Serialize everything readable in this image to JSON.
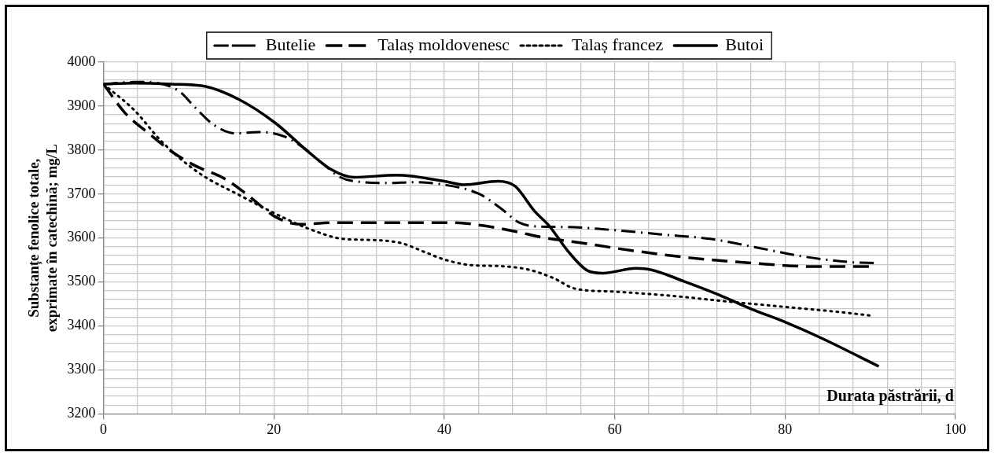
{
  "chart_data": {
    "type": "line",
    "xlabel": "Durata păstrării, d",
    "ylabel": "Substanțe fenolice totale,\nexprimate în catechină; mg/L",
    "xlim": [
      0,
      100
    ],
    "ylim": [
      3200,
      4000
    ],
    "xticks": [
      0,
      {
        "value": 4,
        "label": null
      },
      {
        "value": 8,
        "label": null
      },
      {
        "value": 12,
        "label": null
      },
      {
        "value": 16,
        "label": null
      },
      20,
      {
        "value": 24,
        "label": null
      },
      {
        "value": 28,
        "label": null
      },
      {
        "value": 32,
        "label": null
      },
      {
        "value": 36,
        "label": null
      },
      40,
      {
        "value": 44,
        "label": null
      },
      {
        "value": 48,
        "label": null
      },
      {
        "value": 52,
        "label": null
      },
      {
        "value": 56,
        "label": null
      },
      60,
      {
        "value": 64,
        "label": null
      },
      {
        "value": 68,
        "label": null
      },
      {
        "value": 72,
        "label": null
      },
      {
        "value": 76,
        "label": null
      },
      80,
      {
        "value": 84,
        "label": null
      },
      {
        "value": 88,
        "label": null
      },
      {
        "value": 92,
        "label": null
      },
      {
        "value": 96,
        "label": null
      },
      100
    ],
    "yticks": [
      3200,
      {
        "value": 3220,
        "label": null
      },
      {
        "value": 3240,
        "label": null
      },
      {
        "value": 3260,
        "label": null
      },
      {
        "value": 3280,
        "label": null
      },
      3300,
      {
        "value": 3320,
        "label": null
      },
      {
        "value": 3340,
        "label": null
      },
      {
        "value": 3360,
        "label": null
      },
      {
        "value": 3380,
        "label": null
      },
      3400,
      {
        "value": 3420,
        "label": null
      },
      {
        "value": 3440,
        "label": null
      },
      {
        "value": 3460,
        "label": null
      },
      {
        "value": 3480,
        "label": null
      },
      3500,
      {
        "value": 3520,
        "label": null
      },
      {
        "value": 3540,
        "label": null
      },
      {
        "value": 3560,
        "label": null
      },
      {
        "value": 3580,
        "label": null
      },
      3600,
      {
        "value": 3620,
        "label": null
      },
      {
        "value": 3640,
        "label": null
      },
      {
        "value": 3660,
        "label": null
      },
      {
        "value": 3680,
        "label": null
      },
      3700,
      {
        "value": 3720,
        "label": null
      },
      {
        "value": 3740,
        "label": null
      },
      {
        "value": 3760,
        "label": null
      },
      {
        "value": 3780,
        "label": null
      },
      3800,
      {
        "value": 3820,
        "label": null
      },
      {
        "value": 3840,
        "label": null
      },
      {
        "value": 3860,
        "label": null
      },
      {
        "value": 3880,
        "label": null
      },
      3900,
      {
        "value": 3920,
        "label": null
      },
      {
        "value": 3940,
        "label": null
      },
      {
        "value": 3960,
        "label": null
      },
      {
        "value": 3980,
        "label": null
      },
      4000
    ],
    "grid": true,
    "legend": "top",
    "marker": "none",
    "series": [
      {
        "name": "Butelie",
        "color": "#000000",
        "line_style": "dashdot",
        "x": [
          0,
          4,
          8.8,
          10.7,
          12.9,
          15.5,
          18.2,
          21.2,
          23.5,
          25.8,
          27.8,
          30.4,
          33.4,
          36.4,
          40,
          44,
          46.6,
          48.8,
          51.2,
          54.3,
          59.9,
          65.5,
          71.2,
          76.5,
          82.1,
          87.7,
          90.5
        ],
        "values": [
          3950,
          3955,
          3935,
          3898,
          3858,
          3838,
          3841,
          3831,
          3805,
          3768,
          3738,
          3727,
          3725,
          3727,
          3721,
          3701,
          3668,
          3635,
          3626,
          3625,
          3618,
          3608,
          3598,
          3579,
          3558,
          3545,
          3543
        ]
      },
      {
        "name": "Talaș moldovenesc",
        "color": "#000000",
        "line_style": "dashed",
        "x": [
          0,
          2.5,
          5.3,
          7.9,
          10.7,
          14.2,
          16.9,
          20.2,
          23.1,
          26.8,
          30.4,
          36.7,
          41,
          44.6,
          48.3,
          51.6,
          55.3,
          62.2,
          68.8,
          76.1,
          83.4,
          90.5
        ],
        "values": [
          3950,
          3885,
          3838,
          3798,
          3765,
          3735,
          3698,
          3648,
          3631,
          3635,
          3635,
          3635,
          3635,
          3628,
          3615,
          3601,
          3591,
          3571,
          3555,
          3543,
          3535,
          3535
        ]
      },
      {
        "name": "Talaș francez",
        "color": "#000000",
        "line_style": "dotted",
        "x": [
          0,
          3.6,
          6.9,
          11.2,
          16.2,
          20.2,
          24.1,
          28.1,
          32.1,
          35,
          37.7,
          40,
          43.3,
          46.6,
          49.9,
          52.9,
          55.3,
          59.9,
          66.9,
          73.5,
          80.1,
          86.7,
          90.2
        ],
        "values": [
          3950,
          3891,
          3818,
          3748,
          3695,
          3655,
          3621,
          3598,
          3595,
          3588,
          3568,
          3551,
          3538,
          3536,
          3528,
          3508,
          3485,
          3478,
          3468,
          3455,
          3443,
          3431,
          3423
        ]
      },
      {
        "name": "Butoi",
        "color": "#000000",
        "line_style": "solid",
        "x": [
          0,
          3.6,
          8,
          11.9,
          15.9,
          20.2,
          24.1,
          26.8,
          29.4,
          34.4,
          40,
          42.3,
          46.3,
          48.3,
          50.6,
          52.3,
          54.6,
          56.9,
          58.6,
          62.5,
          64.2,
          68.2,
          72.2,
          76.1,
          80.1,
          84.4,
          91
        ],
        "values": [
          3950,
          3952,
          3950,
          3945,
          3915,
          3861,
          3795,
          3755,
          3738,
          3743,
          3729,
          3721,
          3729,
          3718,
          3661,
          3628,
          3568,
          3525,
          3520,
          3531,
          3528,
          3501,
          3471,
          3438,
          3408,
          3371,
          3308
        ]
      }
    ]
  }
}
